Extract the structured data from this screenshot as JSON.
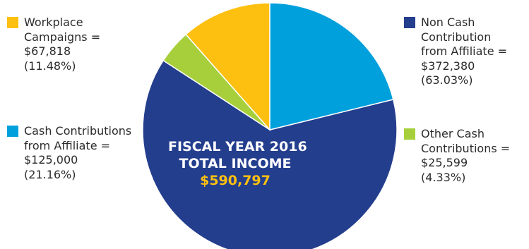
{
  "center": {
    "line1": "FISCAL YEAR 2016",
    "line2": "TOTAL INCOME",
    "total": "$590,797"
  },
  "chart_data": {
    "type": "pie",
    "title": "FISCAL YEAR 2016 TOTAL INCOME $590,797",
    "total": 590797,
    "slices": [
      {
        "label": "Non Cash Contribution from Affiliate",
        "value": 372380,
        "percent": 63.03,
        "color": "#243e8e"
      },
      {
        "label": "Other Cash Contributions",
        "value": 25599,
        "percent": 4.33,
        "color": "#a6cf3b"
      },
      {
        "label": "Workplace Campaigns",
        "value": 67818,
        "percent": 11.48,
        "color": "#fdc010"
      },
      {
        "label": "Cash Contributions from Affiliate",
        "value": 125000,
        "percent": 21.16,
        "color": "#00a0dc"
      }
    ]
  },
  "legend": {
    "workplace": {
      "lines": [
        "Workplace",
        "Campaigns =",
        "$67,818",
        "(11.48%)"
      ],
      "color": "#fdc010"
    },
    "cash_affiliate": {
      "lines": [
        "Cash Contributions",
        "from Affiliate =",
        "$125,000",
        "(21.16%)"
      ],
      "color": "#00a0dc"
    },
    "noncash": {
      "lines": [
        "Non Cash",
        "Contribution",
        "from Affiliate =",
        "$372,380",
        "(63.03%)"
      ],
      "color": "#243e8e"
    },
    "other_cash": {
      "lines": [
        "Other Cash",
        "Contributions =",
        "$25,599",
        "(4.33%)"
      ],
      "color": "#a6cf3b"
    }
  }
}
